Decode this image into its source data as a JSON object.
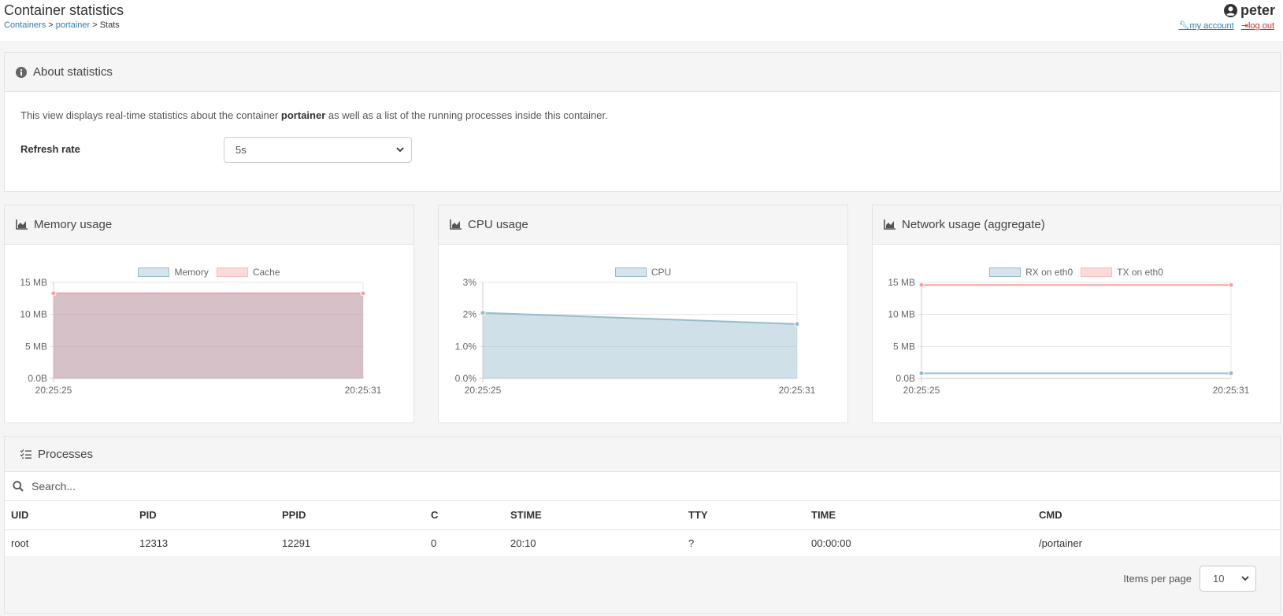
{
  "header": {
    "title": "Container statistics",
    "breadcrumb": [
      "Containers",
      "portainer",
      "Stats"
    ],
    "username": "peter",
    "my_account": "my account",
    "log_out": "log out"
  },
  "about": {
    "title": "About statistics",
    "text_prefix": "This view displays real-time statistics about the container ",
    "container_name": "portainer",
    "text_suffix": " as well as a list of the running processes inside this container.",
    "refresh_label": "Refresh rate",
    "refresh_value": "5s"
  },
  "charts": {
    "memory_title": "Memory usage",
    "cpu_title": "CPU usage",
    "network_title": "Network usage (aggregate)"
  },
  "chart_data": [
    {
      "type": "area",
      "title": "Memory usage",
      "x": [
        "20:25:25",
        "20:25:31"
      ],
      "series": [
        {
          "name": "Memory",
          "values": [
            13.3,
            13.3
          ],
          "color": "#b0cbd9"
        },
        {
          "name": "Cache",
          "values": [
            13.3,
            13.3
          ],
          "color": "#f8bcbc"
        }
      ],
      "yticks": [
        "0.0B",
        "5 MB",
        "10 MB",
        "15 MB"
      ],
      "ylim": [
        0,
        15
      ]
    },
    {
      "type": "area",
      "title": "CPU usage",
      "x": [
        "20:25:25",
        "20:25:31"
      ],
      "series": [
        {
          "name": "CPU",
          "values": [
            2.05,
            1.7
          ],
          "color": "#b0cbd9"
        }
      ],
      "yticks": [
        "0.0%",
        "1.0%",
        "2%",
        "3%"
      ],
      "ylim": [
        0,
        3
      ]
    },
    {
      "type": "line",
      "title": "Network usage (aggregate)",
      "x": [
        "20:25:25",
        "20:25:31"
      ],
      "series": [
        {
          "name": "RX on eth0",
          "values": [
            0.8,
            0.8
          ],
          "color": "#b0cbd9"
        },
        {
          "name": "TX on eth0",
          "values": [
            14.6,
            14.6
          ],
          "color": "#f8bcbc"
        }
      ],
      "yticks": [
        "0.0B",
        "5 MB",
        "10 MB",
        "15 MB"
      ],
      "ylim": [
        0,
        15
      ]
    }
  ],
  "processes": {
    "title": "Processes",
    "search_placeholder": "Search...",
    "columns": [
      "UID",
      "PID",
      "PPID",
      "C",
      "STIME",
      "TTY",
      "TIME",
      "CMD"
    ],
    "rows": [
      [
        "root",
        "12313",
        "12291",
        "0",
        "20:10",
        "?",
        "00:00:00",
        "/portainer"
      ]
    ],
    "items_per_page_label": "Items per page",
    "items_per_page_value": "10"
  }
}
